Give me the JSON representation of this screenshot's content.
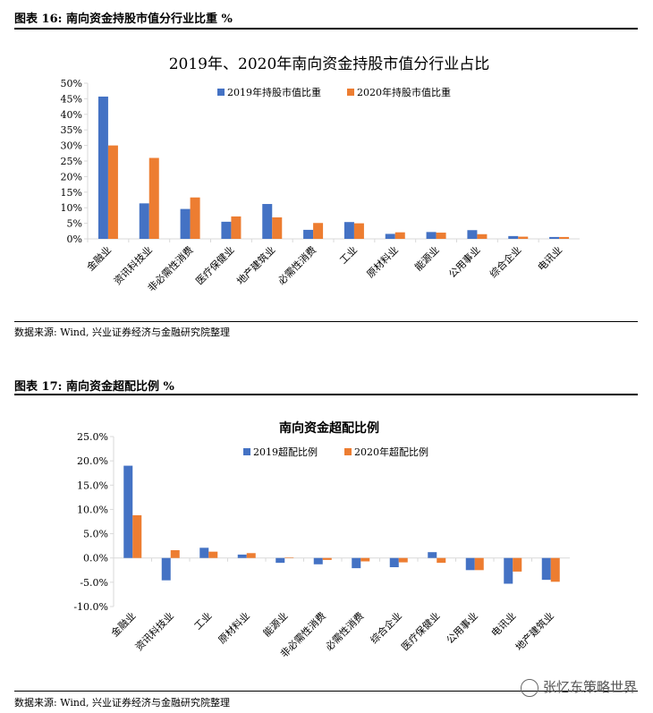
{
  "figure16": {
    "heading": "图表 16:  南向资金持股市值分行业比重  %",
    "source": "数据来源:  Wind, 兴业证券经济与金融研究院整理"
  },
  "figure17": {
    "heading": "图表 17:  南向资金超配比例  %",
    "source": "数据来源:  Wind, 兴业证券经济与金融研究院整理"
  },
  "watermark": {
    "text": "张忆东策略世界",
    "icon": "wechat-icon"
  },
  "colors": {
    "series_2019": "#4472C4",
    "series_2020": "#ED7D31",
    "axis": "#D9D9D9"
  },
  "chart_data": [
    {
      "type": "bar",
      "title": "2019年、2020年南向资金持股市值分行业占比",
      "categories": [
        "金融业",
        "资讯科技业",
        "非必需性消费",
        "医疗保健业",
        "地产建筑业",
        "必需性消费",
        "工业",
        "原材料业",
        "能源业",
        "公用事业",
        "综合企业",
        "电讯业"
      ],
      "series": [
        {
          "name": "2019年持股市值比重",
          "values": [
            45.7,
            11.4,
            9.6,
            5.5,
            11.2,
            2.9,
            5.4,
            1.6,
            2.2,
            2.8,
            0.9,
            0.6
          ]
        },
        {
          "name": "2020年持股市值比重",
          "values": [
            30.0,
            26.0,
            13.3,
            7.2,
            6.9,
            5.1,
            5.0,
            2.1,
            2.0,
            1.5,
            0.7,
            0.6
          ]
        }
      ],
      "ylim": [
        0,
        50
      ],
      "yticks": [
        "0%",
        "5%",
        "10%",
        "15%",
        "20%",
        "25%",
        "30%",
        "35%",
        "40%",
        "45%",
        "50%"
      ],
      "xlabel": "",
      "ylabel": "",
      "legend": "top"
    },
    {
      "type": "bar",
      "title": "南向资金超配比例",
      "categories": [
        "金融业",
        "资讯科技业",
        "工业",
        "原材料业",
        "能源业",
        "非必需性消费",
        "必需性消费",
        "综合企业",
        "医疗保健业",
        "公用事业",
        "电讯业",
        "地产建筑业"
      ],
      "series": [
        {
          "name": "2019超配比例",
          "values": [
            19.0,
            -4.6,
            2.1,
            0.7,
            -1.0,
            -1.3,
            -2.1,
            -1.9,
            1.2,
            -2.5,
            -5.3,
            -4.5
          ]
        },
        {
          "name": "2020年超配比例",
          "values": [
            8.8,
            1.6,
            1.3,
            1.0,
            0.1,
            -0.4,
            -0.7,
            -0.9,
            -1.0,
            -2.5,
            -2.8,
            -4.9
          ]
        }
      ],
      "ylim": [
        -10,
        25
      ],
      "yticks": [
        "-10.0%",
        "-5.0%",
        "0.0%",
        "5.0%",
        "10.0%",
        "15.0%",
        "20.0%",
        "25.0%"
      ],
      "xlabel": "",
      "ylabel": "",
      "legend": "top"
    }
  ]
}
